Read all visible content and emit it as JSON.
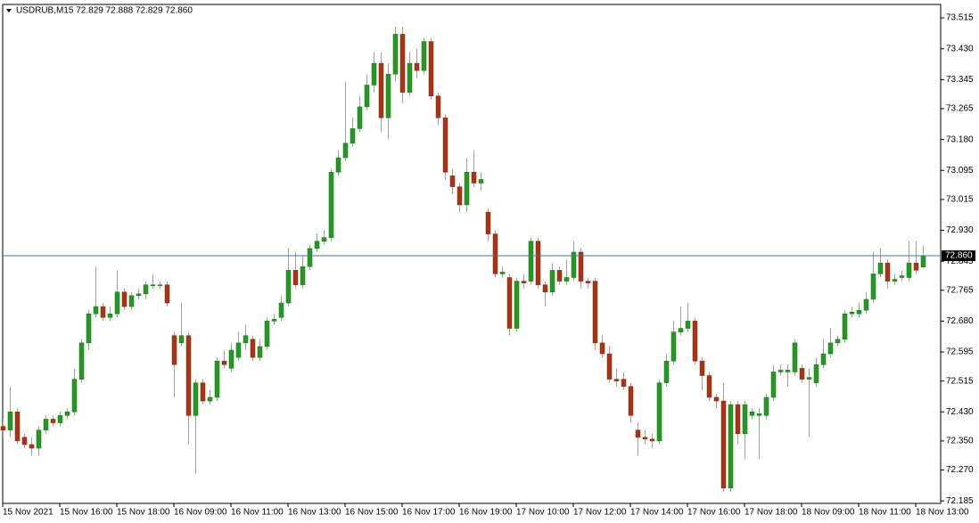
{
  "chart_data": {
    "type": "candlestick",
    "title": "USDRUB,M15  72.829 72.888 72.829 72.860",
    "bull_color": "#1c9e1c",
    "bear_color": "#b0300f",
    "wick_color": "#4cd94c",
    "line_color": "#4a7a8c",
    "ylim": [
      72.178,
      73.552
    ],
    "yticks": [
      73.515,
      {
        "value": 73.43,
        "label": "73.430"
      },
      73.345,
      73.265,
      {
        "value": 73.18,
        "label": "73.180"
      },
      73.095,
      73.015,
      {
        "value": 72.93,
        "label": "72.930"
      },
      72.845,
      72.765,
      {
        "value": 72.68,
        "label": "72.680"
      },
      72.595,
      72.515,
      {
        "value": 72.43,
        "label": "72.430"
      },
      {
        "value": 72.35,
        "label": "72.350"
      },
      {
        "value": 72.27,
        "label": "72.270"
      },
      72.185
    ],
    "xlim": [
      0,
      131.5
    ],
    "xticks": [
      {
        "value": 0,
        "label": "15 Nov 2021"
      },
      {
        "value": 8,
        "label": "15 Nov 16:00"
      },
      {
        "value": 16,
        "label": "15 Nov 18:00"
      },
      {
        "value": 24,
        "label": "16 Nov 09:00"
      },
      {
        "value": 32,
        "label": "16 Nov 11:00"
      },
      {
        "value": 40,
        "label": "16 Nov 13:00"
      },
      {
        "value": 48,
        "label": "16 Nov 15:00"
      },
      {
        "value": 56,
        "label": "16 Nov 17:00"
      },
      {
        "value": 64,
        "label": "16 Nov 19:00"
      },
      {
        "value": 72,
        "label": "17 Nov 10:00"
      },
      {
        "value": 80,
        "label": "17 Nov 12:00"
      },
      {
        "value": 88,
        "label": "17 Nov 14:00"
      },
      {
        "value": 96,
        "label": "17 Nov 16:00"
      },
      {
        "value": 104,
        "label": "17 Nov 18:00"
      },
      {
        "value": 112,
        "label": "18 Nov 09:00"
      },
      {
        "value": 120,
        "label": "18 Nov 11:00"
      },
      {
        "value": 128,
        "label": "18 Nov 13:00"
      }
    ],
    "last_price": {
      "value": 72.86,
      "label": "72.860"
    },
    "candles": [
      [
        72.39,
        72.41,
        72.36,
        72.38
      ],
      [
        72.38,
        72.5,
        72.36,
        72.43
      ],
      [
        72.43,
        72.44,
        72.34,
        72.35
      ],
      [
        72.36,
        72.37,
        72.33,
        72.34
      ],
      [
        72.34,
        72.36,
        72.31,
        72.33
      ],
      [
        72.33,
        72.39,
        72.31,
        72.38
      ],
      [
        72.38,
        72.42,
        72.37,
        72.41
      ],
      [
        72.41,
        72.42,
        72.39,
        72.4
      ],
      [
        72.4,
        72.43,
        72.39,
        72.42
      ],
      [
        72.42,
        72.44,
        72.41,
        72.43
      ],
      [
        72.43,
        72.55,
        72.42,
        72.52
      ],
      [
        72.52,
        72.63,
        72.51,
        72.62
      ],
      [
        72.62,
        72.71,
        72.6,
        72.7
      ],
      [
        72.7,
        72.83,
        72.69,
        72.72
      ],
      [
        72.72,
        72.73,
        72.68,
        72.69
      ],
      [
        72.69,
        72.72,
        72.68,
        72.7
      ],
      [
        72.7,
        72.82,
        72.69,
        72.76
      ],
      [
        72.76,
        72.77,
        72.71,
        72.72
      ],
      [
        72.72,
        72.76,
        72.71,
        72.75
      ],
      [
        72.75,
        72.77,
        72.74,
        72.755
      ],
      [
        72.755,
        72.79,
        72.74,
        72.78
      ],
      [
        72.78,
        72.81,
        72.77,
        72.78
      ],
      [
        72.78,
        72.79,
        72.77,
        72.78
      ],
      [
        72.78,
        72.79,
        72.72,
        72.73
      ],
      [
        72.64,
        72.65,
        72.47,
        72.56
      ],
      [
        72.62,
        72.73,
        72.61,
        72.64
      ],
      [
        72.64,
        72.65,
        72.34,
        72.42
      ],
      [
        72.42,
        72.52,
        72.26,
        72.51
      ],
      [
        72.51,
        72.52,
        72.45,
        72.46
      ],
      [
        72.46,
        72.49,
        72.45,
        72.47
      ],
      [
        72.47,
        72.58,
        72.46,
        72.57
      ],
      [
        72.57,
        72.6,
        72.55,
        72.56
      ],
      [
        72.55,
        72.62,
        72.54,
        72.6
      ],
      [
        72.58,
        72.65,
        72.57,
        72.62
      ],
      [
        72.62,
        72.67,
        72.6,
        72.64
      ],
      [
        72.63,
        72.64,
        72.57,
        72.58
      ],
      [
        72.58,
        72.63,
        72.57,
        72.61
      ],
      [
        72.61,
        72.69,
        72.6,
        72.68
      ],
      [
        72.68,
        72.7,
        72.67,
        72.685
      ],
      [
        72.69,
        72.75,
        72.68,
        72.73
      ],
      [
        72.73,
        72.88,
        72.72,
        72.82
      ],
      [
        72.82,
        72.87,
        72.77,
        72.78
      ],
      [
        72.78,
        72.86,
        72.77,
        72.83
      ],
      [
        72.83,
        72.89,
        72.82,
        72.88
      ],
      [
        72.88,
        72.92,
        72.87,
        72.9
      ],
      [
        72.9,
        72.93,
        72.89,
        72.91
      ],
      [
        72.91,
        73.1,
        72.9,
        73.09
      ],
      [
        73.09,
        73.15,
        73.08,
        73.13
      ],
      [
        73.13,
        73.34,
        73.12,
        73.17
      ],
      [
        73.17,
        73.24,
        73.16,
        73.21
      ],
      [
        73.21,
        73.3,
        73.2,
        73.27
      ],
      [
        73.27,
        73.36,
        73.26,
        73.33
      ],
      [
        73.33,
        73.42,
        73.31,
        73.39
      ],
      [
        73.39,
        73.42,
        73.2,
        73.24
      ],
      [
        73.24,
        73.39,
        73.18,
        73.36
      ],
      [
        73.36,
        73.49,
        73.34,
        73.47
      ],
      [
        73.47,
        73.49,
        73.28,
        73.31
      ],
      [
        73.31,
        73.42,
        73.3,
        73.39
      ],
      [
        73.39,
        73.43,
        73.35,
        73.37
      ],
      [
        73.37,
        73.46,
        73.36,
        73.45
      ],
      [
        73.45,
        73.46,
        73.29,
        73.3
      ],
      [
        73.3,
        73.31,
        73.22,
        73.24
      ],
      [
        73.24,
        73.25,
        73.07,
        73.09
      ],
      [
        73.08,
        73.1,
        73.03,
        73.05
      ],
      [
        73.05,
        73.06,
        72.98,
        73.0
      ],
      [
        73.0,
        73.13,
        72.98,
        73.09
      ],
      [
        73.09,
        73.15,
        73.05,
        73.06
      ],
      [
        73.06,
        73.09,
        73.04,
        73.07
      ],
      [
        72.98,
        72.99,
        72.9,
        72.92
      ],
      [
        72.92,
        72.93,
        72.8,
        72.81
      ],
      [
        72.81,
        72.83,
        72.8,
        72.815
      ],
      [
        72.8,
        72.81,
        72.64,
        72.66
      ],
      [
        72.66,
        72.8,
        72.65,
        72.79
      ],
      [
        72.79,
        72.81,
        72.77,
        72.785
      ],
      [
        72.79,
        72.91,
        72.78,
        72.9
      ],
      [
        72.9,
        72.91,
        72.77,
        72.78
      ],
      [
        72.78,
        72.79,
        72.72,
        72.76
      ],
      [
        72.76,
        72.84,
        72.75,
        72.82
      ],
      [
        72.82,
        72.83,
        72.78,
        72.79
      ],
      [
        72.79,
        72.85,
        72.78,
        72.8
      ],
      [
        72.8,
        72.9,
        72.79,
        72.87
      ],
      [
        72.87,
        72.88,
        72.77,
        72.79
      ],
      [
        72.79,
        72.8,
        72.77,
        72.785
      ],
      [
        72.79,
        72.8,
        72.6,
        72.62
      ],
      [
        72.62,
        72.64,
        72.58,
        72.59
      ],
      [
        72.59,
        72.61,
        72.51,
        72.52
      ],
      [
        72.52,
        72.55,
        72.5,
        72.515
      ],
      [
        72.52,
        72.54,
        72.49,
        72.5
      ],
      [
        72.5,
        72.51,
        72.4,
        72.42
      ],
      [
        72.38,
        72.4,
        72.31,
        72.36
      ],
      [
        72.36,
        72.38,
        72.34,
        72.355
      ],
      [
        72.355,
        72.37,
        72.33,
        72.35
      ],
      [
        72.35,
        72.52,
        72.34,
        72.51
      ],
      [
        72.51,
        72.59,
        72.5,
        72.57
      ],
      [
        72.57,
        72.68,
        72.56,
        72.65
      ],
      [
        72.65,
        72.72,
        72.64,
        72.66
      ],
      [
        72.66,
        72.73,
        72.65,
        72.68
      ],
      [
        72.68,
        72.69,
        72.56,
        72.57
      ],
      [
        72.57,
        72.58,
        72.49,
        72.53
      ],
      [
        72.53,
        72.54,
        72.46,
        72.47
      ],
      [
        72.47,
        72.48,
        72.44,
        72.46
      ],
      [
        72.46,
        72.51,
        72.21,
        72.22
      ],
      [
        72.22,
        72.46,
        72.21,
        72.45
      ],
      [
        72.45,
        72.46,
        72.34,
        72.37
      ],
      [
        72.37,
        72.46,
        72.3,
        72.45
      ],
      [
        72.42,
        72.44,
        72.41,
        72.43
      ],
      [
        72.42,
        72.44,
        72.3,
        72.425
      ],
      [
        72.42,
        72.48,
        72.41,
        72.47
      ],
      [
        72.47,
        72.56,
        72.46,
        72.54
      ],
      [
        72.54,
        72.56,
        72.53,
        72.545
      ],
      [
        72.54,
        72.56,
        72.5,
        72.545
      ],
      [
        72.54,
        72.63,
        72.53,
        72.62
      ],
      [
        72.55,
        72.56,
        72.51,
        72.52
      ],
      [
        72.52,
        72.55,
        72.36,
        72.525
      ],
      [
        72.51,
        72.58,
        72.5,
        72.56
      ],
      [
        72.56,
        72.63,
        72.55,
        72.59
      ],
      [
        72.59,
        72.66,
        72.58,
        72.62
      ],
      [
        72.62,
        72.64,
        72.61,
        72.63
      ],
      [
        72.63,
        72.71,
        72.62,
        72.7
      ],
      [
        72.7,
        72.72,
        72.69,
        72.705
      ],
      [
        72.7,
        72.73,
        72.69,
        72.71
      ],
      [
        72.71,
        72.76,
        72.7,
        72.74
      ],
      [
        72.74,
        72.87,
        72.73,
        72.81
      ],
      [
        72.81,
        72.88,
        72.8,
        72.84
      ],
      [
        72.84,
        72.85,
        72.77,
        72.79
      ],
      [
        72.79,
        72.81,
        72.78,
        72.795
      ],
      [
        72.8,
        72.82,
        72.79,
        72.805
      ],
      [
        72.8,
        72.9,
        72.79,
        72.84
      ],
      [
        72.84,
        72.9,
        72.81,
        72.82
      ],
      [
        72.829,
        72.888,
        72.829,
        72.86
      ]
    ]
  }
}
